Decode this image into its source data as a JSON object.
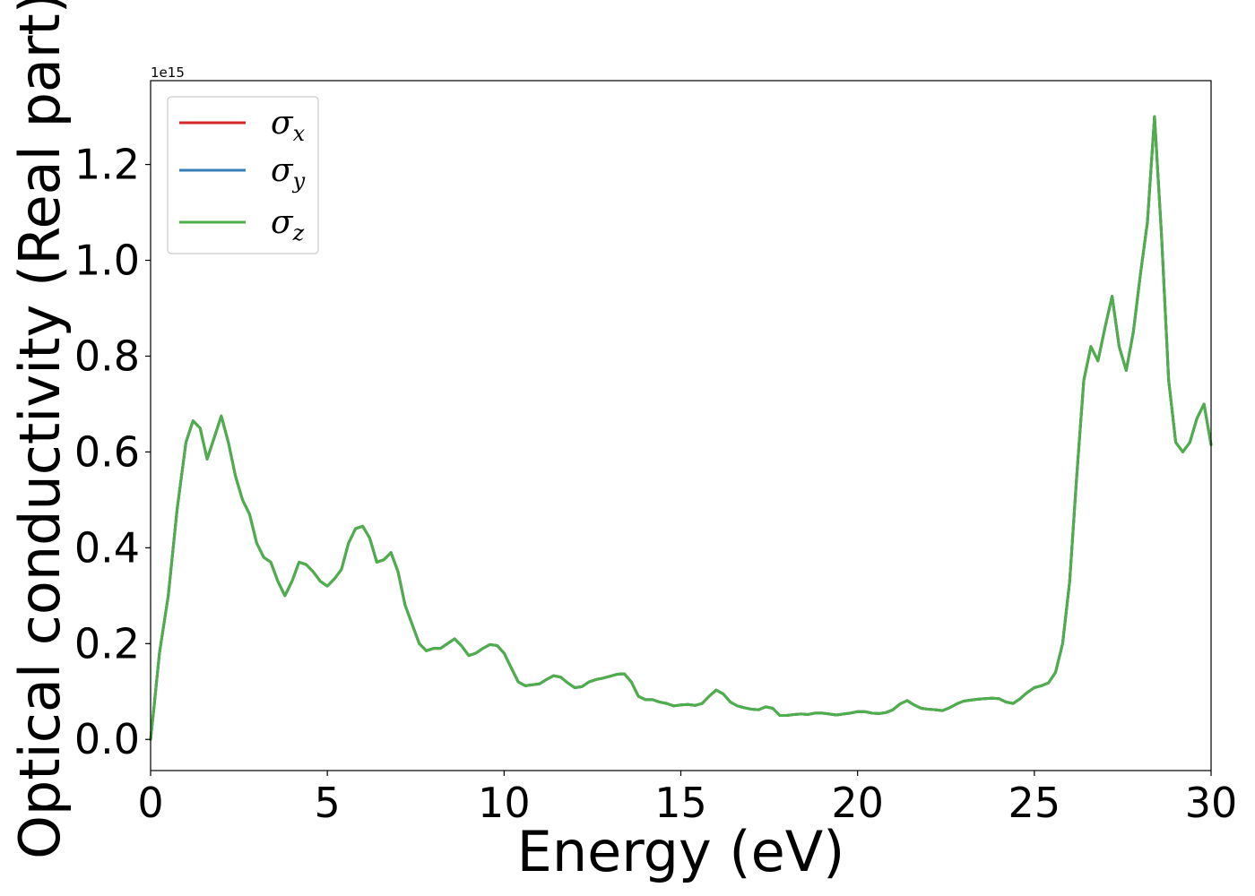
{
  "chart_data": {
    "type": "line",
    "title": "",
    "xlabel": "Energy (eV)",
    "ylabel": "Optical conductivity (Real part)",
    "y_offset_label": "1e15",
    "y_multiplier": 1000000000000000.0,
    "xlim": [
      0,
      30
    ],
    "ylim": [
      -0.065,
      1.375
    ],
    "x_ticks": [
      0,
      5,
      10,
      15,
      20,
      25,
      30
    ],
    "x_tick_labels": [
      "0",
      "5",
      "10",
      "15",
      "20",
      "25",
      "30"
    ],
    "y_ticks": [
      0.0,
      0.2,
      0.4,
      0.6,
      0.8,
      1.0,
      1.2
    ],
    "y_tick_labels": [
      "0.0",
      "0.2",
      "0.4",
      "0.6",
      "0.8",
      "1.0",
      "1.2"
    ],
    "grid": false,
    "legend_position": "top-left",
    "x": [
      0,
      0.1,
      0.25,
      0.5,
      0.75,
      1.0,
      1.2,
      1.4,
      1.6,
      1.8,
      2.0,
      2.2,
      2.4,
      2.6,
      2.8,
      3.0,
      3.2,
      3.4,
      3.6,
      3.8,
      4.0,
      4.2,
      4.4,
      4.6,
      4.8,
      5.0,
      5.2,
      5.4,
      5.6,
      5.8,
      6.0,
      6.2,
      6.4,
      6.6,
      6.8,
      7.0,
      7.2,
      7.4,
      7.6,
      7.8,
      8.0,
      8.2,
      8.4,
      8.6,
      8.8,
      9.0,
      9.2,
      9.4,
      9.6,
      9.8,
      10.0,
      10.2,
      10.4,
      10.6,
      10.8,
      11.0,
      11.2,
      11.4,
      11.6,
      11.8,
      12.0,
      12.2,
      12.4,
      12.6,
      12.8,
      13.0,
      13.2,
      13.4,
      13.6,
      13.8,
      14.0,
      14.2,
      14.4,
      14.6,
      14.8,
      15.0,
      15.2,
      15.4,
      15.6,
      15.8,
      16.0,
      16.2,
      16.4,
      16.6,
      16.8,
      17.0,
      17.2,
      17.4,
      17.6,
      17.8,
      18.0,
      18.2,
      18.4,
      18.6,
      18.8,
      19.0,
      19.2,
      19.4,
      19.6,
      19.8,
      20.0,
      20.2,
      20.4,
      20.6,
      20.8,
      21.0,
      21.2,
      21.4,
      21.6,
      21.8,
      22.0,
      22.2,
      22.4,
      22.6,
      22.8,
      23.0,
      23.2,
      23.4,
      23.6,
      23.8,
      24.0,
      24.2,
      24.4,
      24.6,
      24.8,
      25.0,
      25.2,
      25.4,
      25.6,
      25.8,
      26.0,
      26.2,
      26.4,
      26.6,
      26.8,
      27.0,
      27.2,
      27.4,
      27.6,
      27.8,
      28.0,
      28.2,
      28.4,
      28.6,
      28.8,
      29.0,
      29.2,
      29.4,
      29.6,
      29.8,
      30.0
    ],
    "series": [
      {
        "name": "σx",
        "color": "#d62728",
        "values": [
          0.0,
          0.07,
          0.18,
          0.3,
          0.48,
          0.62,
          0.665,
          0.65,
          0.585,
          0.63,
          0.675,
          0.62,
          0.55,
          0.5,
          0.47,
          0.41,
          0.38,
          0.37,
          0.33,
          0.3,
          0.33,
          0.37,
          0.365,
          0.35,
          0.33,
          0.32,
          0.335,
          0.355,
          0.41,
          0.44,
          0.445,
          0.42,
          0.37,
          0.375,
          0.39,
          0.35,
          0.28,
          0.24,
          0.2,
          0.185,
          0.19,
          0.19,
          0.2,
          0.21,
          0.195,
          0.175,
          0.18,
          0.19,
          0.198,
          0.196,
          0.18,
          0.15,
          0.12,
          0.112,
          0.114,
          0.116,
          0.125,
          0.133,
          0.13,
          0.118,
          0.108,
          0.11,
          0.12,
          0.125,
          0.128,
          0.132,
          0.136,
          0.137,
          0.12,
          0.09,
          0.083,
          0.083,
          0.078,
          0.075,
          0.07,
          0.072,
          0.073,
          0.071,
          0.075,
          0.09,
          0.103,
          0.095,
          0.078,
          0.07,
          0.066,
          0.063,
          0.062,
          0.068,
          0.065,
          0.05,
          0.05,
          0.052,
          0.053,
          0.052,
          0.055,
          0.055,
          0.053,
          0.051,
          0.053,
          0.055,
          0.058,
          0.058,
          0.055,
          0.054,
          0.056,
          0.062,
          0.074,
          0.081,
          0.072,
          0.065,
          0.063,
          0.062,
          0.06,
          0.066,
          0.074,
          0.08,
          0.082,
          0.084,
          0.085,
          0.086,
          0.085,
          0.078,
          0.075,
          0.085,
          0.098,
          0.108,
          0.112,
          0.118,
          0.14,
          0.2,
          0.33,
          0.55,
          0.75,
          0.82,
          0.79,
          0.86,
          0.925,
          0.82,
          0.77,
          0.85,
          0.97,
          1.08,
          1.3,
          1.05,
          0.75,
          0.62,
          0.6,
          0.62,
          0.67,
          0.7,
          0.615
        ]
      },
      {
        "name": "σy",
        "color": "#377eb8",
        "values": [
          0.0,
          0.07,
          0.18,
          0.3,
          0.48,
          0.62,
          0.665,
          0.65,
          0.585,
          0.63,
          0.675,
          0.62,
          0.55,
          0.5,
          0.47,
          0.41,
          0.38,
          0.37,
          0.33,
          0.3,
          0.33,
          0.37,
          0.365,
          0.35,
          0.33,
          0.32,
          0.335,
          0.355,
          0.41,
          0.44,
          0.445,
          0.42,
          0.37,
          0.375,
          0.39,
          0.35,
          0.28,
          0.24,
          0.2,
          0.185,
          0.19,
          0.19,
          0.2,
          0.21,
          0.195,
          0.175,
          0.18,
          0.19,
          0.198,
          0.196,
          0.18,
          0.15,
          0.12,
          0.112,
          0.114,
          0.116,
          0.125,
          0.133,
          0.13,
          0.118,
          0.108,
          0.11,
          0.12,
          0.125,
          0.128,
          0.132,
          0.136,
          0.137,
          0.12,
          0.09,
          0.083,
          0.083,
          0.078,
          0.075,
          0.07,
          0.072,
          0.073,
          0.071,
          0.075,
          0.09,
          0.103,
          0.095,
          0.078,
          0.07,
          0.066,
          0.063,
          0.062,
          0.068,
          0.065,
          0.05,
          0.05,
          0.052,
          0.053,
          0.052,
          0.055,
          0.055,
          0.053,
          0.051,
          0.053,
          0.055,
          0.058,
          0.058,
          0.055,
          0.054,
          0.056,
          0.062,
          0.074,
          0.081,
          0.072,
          0.065,
          0.063,
          0.062,
          0.06,
          0.066,
          0.074,
          0.08,
          0.082,
          0.084,
          0.085,
          0.086,
          0.085,
          0.078,
          0.075,
          0.085,
          0.098,
          0.108,
          0.112,
          0.118,
          0.14,
          0.2,
          0.33,
          0.55,
          0.75,
          0.82,
          0.79,
          0.86,
          0.925,
          0.82,
          0.77,
          0.85,
          0.97,
          1.08,
          1.3,
          1.05,
          0.75,
          0.62,
          0.6,
          0.62,
          0.67,
          0.7,
          0.615
        ]
      },
      {
        "name": "σz",
        "color": "#4daf4a",
        "values": [
          0.0,
          0.07,
          0.18,
          0.3,
          0.48,
          0.62,
          0.665,
          0.65,
          0.585,
          0.63,
          0.675,
          0.62,
          0.55,
          0.5,
          0.47,
          0.41,
          0.38,
          0.37,
          0.33,
          0.3,
          0.33,
          0.37,
          0.365,
          0.35,
          0.33,
          0.32,
          0.335,
          0.355,
          0.41,
          0.44,
          0.445,
          0.42,
          0.37,
          0.375,
          0.39,
          0.35,
          0.28,
          0.24,
          0.2,
          0.185,
          0.19,
          0.19,
          0.2,
          0.21,
          0.195,
          0.175,
          0.18,
          0.19,
          0.198,
          0.196,
          0.18,
          0.15,
          0.12,
          0.112,
          0.114,
          0.116,
          0.125,
          0.133,
          0.13,
          0.118,
          0.108,
          0.11,
          0.12,
          0.125,
          0.128,
          0.132,
          0.136,
          0.137,
          0.12,
          0.09,
          0.083,
          0.083,
          0.078,
          0.075,
          0.07,
          0.072,
          0.073,
          0.071,
          0.075,
          0.09,
          0.103,
          0.095,
          0.078,
          0.07,
          0.066,
          0.063,
          0.062,
          0.068,
          0.065,
          0.05,
          0.05,
          0.052,
          0.053,
          0.052,
          0.055,
          0.055,
          0.053,
          0.051,
          0.053,
          0.055,
          0.058,
          0.058,
          0.055,
          0.054,
          0.056,
          0.062,
          0.074,
          0.081,
          0.072,
          0.065,
          0.063,
          0.062,
          0.06,
          0.066,
          0.074,
          0.08,
          0.082,
          0.084,
          0.085,
          0.086,
          0.085,
          0.078,
          0.075,
          0.085,
          0.098,
          0.108,
          0.112,
          0.118,
          0.14,
          0.2,
          0.33,
          0.55,
          0.75,
          0.82,
          0.79,
          0.86,
          0.925,
          0.82,
          0.77,
          0.85,
          0.97,
          1.08,
          1.3,
          1.05,
          0.75,
          0.62,
          0.6,
          0.62,
          0.67,
          0.7,
          0.615
        ]
      }
    ],
    "legend": [
      {
        "symbol": "σ",
        "sub": "x",
        "color": "#d62728"
      },
      {
        "symbol": "σ",
        "sub": "y",
        "color": "#377eb8"
      },
      {
        "symbol": "σ",
        "sub": "z",
        "color": "#4daf4a"
      }
    ]
  }
}
